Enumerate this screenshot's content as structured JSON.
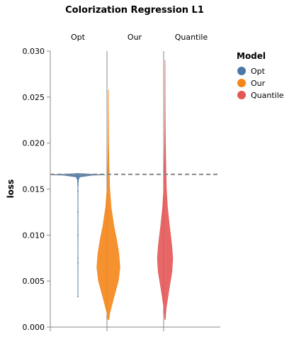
{
  "chart_data": {
    "type": "violin",
    "title": "Colorization Regression L1",
    "ylabel": "loss",
    "xlabel": "",
    "ylim": [
      0,
      0.03
    ],
    "yticks": [
      0,
      0.005,
      0.01,
      0.015,
      0.02,
      0.025,
      0.03
    ],
    "ytick_labels": [
      "0.000",
      "0.005",
      "0.010",
      "0.015",
      "0.020",
      "0.025",
      "0.030"
    ],
    "facets": [
      "Opt",
      "Our",
      "Quantile"
    ],
    "reference_line": {
      "y": 0.0166,
      "style": "dashed",
      "color": "#888888"
    },
    "legend": {
      "title": "Model",
      "placement": "top-right",
      "entries": [
        {
          "label": "Opt",
          "color": "#4c78a8"
        },
        {
          "label": "Our",
          "color": "#f58518"
        },
        {
          "label": "Quantile",
          "color": "#e45756"
        }
      ]
    },
    "series": [
      {
        "name": "Opt",
        "color": "#4c78a8",
        "profile": [
          [
            0.0033,
            0.003
          ],
          [
            0.007,
            0.004
          ],
          [
            0.0075,
            0.003
          ],
          [
            0.01,
            0.005
          ],
          [
            0.0125,
            0.004
          ],
          [
            0.0148,
            0.005
          ],
          [
            0.0155,
            0.008
          ],
          [
            0.016,
            0.02
          ],
          [
            0.0163,
            0.06
          ],
          [
            0.0165,
            0.5
          ],
          [
            0.01655,
            1.0
          ],
          [
            0.0166,
            0.6
          ],
          [
            0.0167,
            0.05
          ]
        ],
        "points": [
          0.0033,
          0.007,
          0.0075,
          0.01,
          0.0125,
          0.0148,
          0.0155,
          0.0162,
          0.0164
        ]
      },
      {
        "name": "Our",
        "color": "#f58518",
        "profile": [
          [
            0.0008,
            0.02
          ],
          [
            0.0015,
            0.05
          ],
          [
            0.003,
            0.18
          ],
          [
            0.005,
            0.36
          ],
          [
            0.0065,
            0.42
          ],
          [
            0.008,
            0.38
          ],
          [
            0.0095,
            0.3
          ],
          [
            0.011,
            0.2
          ],
          [
            0.013,
            0.1
          ],
          [
            0.015,
            0.05
          ],
          [
            0.0175,
            0.025
          ],
          [
            0.02,
            0.012
          ],
          [
            0.0235,
            0.006
          ],
          [
            0.0258,
            0.003
          ]
        ]
      },
      {
        "name": "Quantile",
        "color": "#e45756",
        "profile": [
          [
            0.0008,
            0.01
          ],
          [
            0.002,
            0.04
          ],
          [
            0.004,
            0.14
          ],
          [
            0.006,
            0.25
          ],
          [
            0.0075,
            0.28
          ],
          [
            0.009,
            0.24
          ],
          [
            0.011,
            0.16
          ],
          [
            0.013,
            0.09
          ],
          [
            0.015,
            0.05
          ],
          [
            0.0175,
            0.03
          ],
          [
            0.02,
            0.015
          ],
          [
            0.024,
            0.006
          ],
          [
            0.029,
            0.002
          ]
        ]
      }
    ]
  }
}
